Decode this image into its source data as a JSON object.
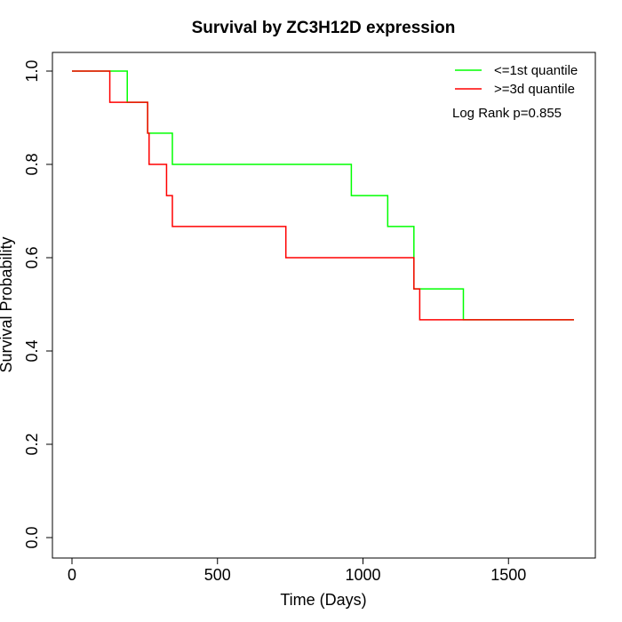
{
  "chart_data": {
    "type": "line",
    "subtype": "kaplan-meier step curve",
    "title": "Survival by ZC3H12D expression",
    "xlabel": "Time (Days)",
    "ylabel": "Survival Probability",
    "xlim": [
      0,
      1750
    ],
    "ylim": [
      0,
      1.0
    ],
    "xticks": [
      0,
      500,
      1000,
      1500
    ],
    "yticks": [
      0.0,
      0.2,
      0.4,
      0.6,
      0.8,
      1.0
    ],
    "xtick_labels": [
      "0",
      "500",
      "1000",
      "1500"
    ],
    "ytick_labels": [
      "0.0",
      "0.2",
      "0.4",
      "0.6",
      "0.8",
      "1.0"
    ],
    "grid": false,
    "legend_position": "top-right",
    "annotation": "Log Rank p=0.855",
    "series": [
      {
        "name": "<=1st quantile",
        "color": "#00ff00",
        "x": [
          0,
          190,
          260,
          345,
          960,
          1085,
          1175,
          1345,
          1725
        ],
        "y": [
          1.0,
          0.933,
          0.867,
          0.8,
          0.733,
          0.667,
          0.533,
          0.467,
          0.467
        ]
      },
      {
        "name": ">=3d quantile",
        "color": "#ff0000",
        "x": [
          0,
          130,
          260,
          265,
          325,
          345,
          735,
          1175,
          1195,
          1725
        ],
        "y": [
          1.0,
          0.933,
          0.867,
          0.8,
          0.733,
          0.667,
          0.6,
          0.533,
          0.467,
          0.467
        ]
      }
    ]
  }
}
